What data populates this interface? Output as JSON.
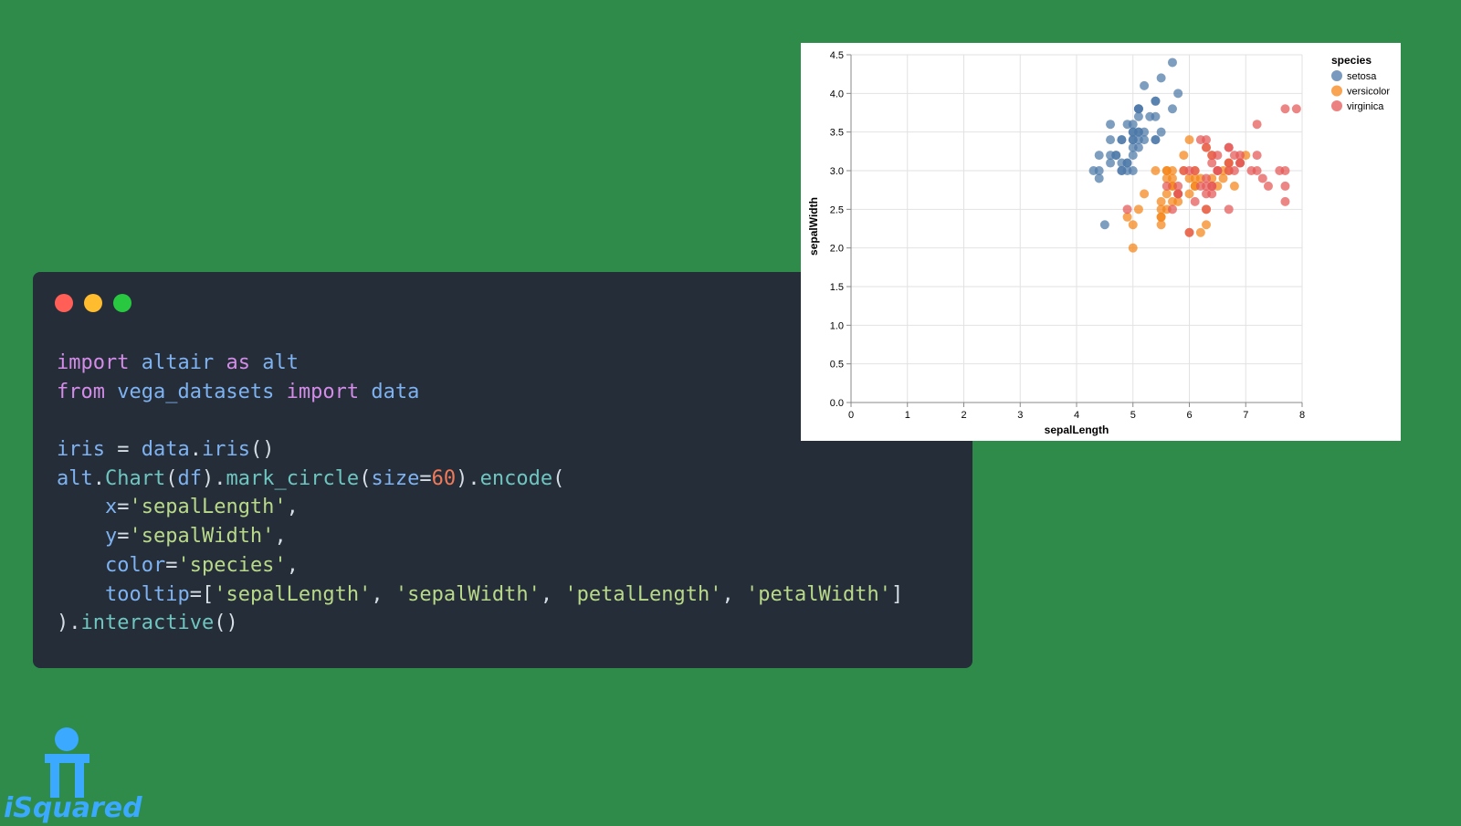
{
  "window_controls": [
    {
      "name": "close",
      "color": "#ff5f57"
    },
    {
      "name": "minimize",
      "color": "#febc2e"
    },
    {
      "name": "maximize",
      "color": "#28c840"
    }
  ],
  "code_lines": [
    [
      {
        "t": "import",
        "c": "kw"
      },
      {
        "t": " altair ",
        "c": "id"
      },
      {
        "t": "as",
        "c": "kw"
      },
      {
        "t": " alt",
        "c": "id"
      }
    ],
    [
      {
        "t": "from",
        "c": "kw"
      },
      {
        "t": " vega_datasets ",
        "c": "id"
      },
      {
        "t": "import",
        "c": "kw"
      },
      {
        "t": " data",
        "c": "id"
      }
    ],
    [],
    [
      {
        "t": "iris",
        "c": "id"
      },
      {
        "t": " = ",
        "c": "p"
      },
      {
        "t": "data",
        "c": "id"
      },
      {
        "t": ".",
        "c": "p"
      },
      {
        "t": "iris",
        "c": "id"
      },
      {
        "t": "()",
        "c": "p"
      }
    ],
    [
      {
        "t": "alt",
        "c": "id"
      },
      {
        "t": ".",
        "c": "p"
      },
      {
        "t": "Chart",
        "c": "fn"
      },
      {
        "t": "(",
        "c": "p"
      },
      {
        "t": "df",
        "c": "id"
      },
      {
        "t": ").",
        "c": "p"
      },
      {
        "t": "mark_circle",
        "c": "fn"
      },
      {
        "t": "(",
        "c": "p"
      },
      {
        "t": "size",
        "c": "id"
      },
      {
        "t": "=",
        "c": "p"
      },
      {
        "t": "60",
        "c": "num"
      },
      {
        "t": ").",
        "c": "p"
      },
      {
        "t": "encode",
        "c": "fn"
      },
      {
        "t": "(",
        "c": "p"
      }
    ],
    [
      {
        "t": "    x",
        "c": "id"
      },
      {
        "t": "=",
        "c": "p"
      },
      {
        "t": "'sepalLength'",
        "c": "str"
      },
      {
        "t": ",",
        "c": "p"
      }
    ],
    [
      {
        "t": "    y",
        "c": "id"
      },
      {
        "t": "=",
        "c": "p"
      },
      {
        "t": "'sepalWidth'",
        "c": "str"
      },
      {
        "t": ",",
        "c": "p"
      }
    ],
    [
      {
        "t": "    color",
        "c": "id"
      },
      {
        "t": "=",
        "c": "p"
      },
      {
        "t": "'species'",
        "c": "str"
      },
      {
        "t": ",",
        "c": "p"
      }
    ],
    [
      {
        "t": "    tooltip",
        "c": "id"
      },
      {
        "t": "=[",
        "c": "p"
      },
      {
        "t": "'sepalLength'",
        "c": "str"
      },
      {
        "t": ", ",
        "c": "p"
      },
      {
        "t": "'sepalWidth'",
        "c": "str"
      },
      {
        "t": ", ",
        "c": "p"
      },
      {
        "t": "'petalLength'",
        "c": "str"
      },
      {
        "t": ", ",
        "c": "p"
      },
      {
        "t": "'petalWidth'",
        "c": "str"
      },
      {
        "t": "]",
        "c": "p"
      }
    ],
    [
      {
        "t": ").",
        "c": "p"
      },
      {
        "t": "interactive",
        "c": "fn"
      },
      {
        "t": "()",
        "c": "p"
      }
    ]
  ],
  "chart_data": {
    "type": "scatter",
    "xlabel": "sepalLength",
    "ylabel": "sepalWidth",
    "xlim": [
      0,
      8
    ],
    "ylim": [
      0,
      4.5
    ],
    "xticks": [
      "0",
      "1",
      "2",
      "3",
      "4",
      "5",
      "6",
      "7",
      "8"
    ],
    "yticks": [
      "0.0",
      "0.5",
      "1.0",
      "1.5",
      "2.0",
      "2.5",
      "3.0",
      "3.5",
      "4.0",
      "4.5"
    ],
    "grid": true,
    "legend": {
      "title": "species",
      "position": "top-right"
    },
    "series": [
      {
        "name": "setosa",
        "color": "#4c78a8",
        "points": [
          [
            5.1,
            3.5
          ],
          [
            4.9,
            3.0
          ],
          [
            4.7,
            3.2
          ],
          [
            4.6,
            3.1
          ],
          [
            5.0,
            3.6
          ],
          [
            5.4,
            3.9
          ],
          [
            4.6,
            3.4
          ],
          [
            5.0,
            3.4
          ],
          [
            4.4,
            2.9
          ],
          [
            4.9,
            3.1
          ],
          [
            5.4,
            3.7
          ],
          [
            4.8,
            3.4
          ],
          [
            4.8,
            3.0
          ],
          [
            4.3,
            3.0
          ],
          [
            5.8,
            4.0
          ],
          [
            5.7,
            4.4
          ],
          [
            5.4,
            3.9
          ],
          [
            5.1,
            3.5
          ],
          [
            5.7,
            3.8
          ],
          [
            5.1,
            3.8
          ],
          [
            5.4,
            3.4
          ],
          [
            5.1,
            3.7
          ],
          [
            4.6,
            3.6
          ],
          [
            5.1,
            3.3
          ],
          [
            4.8,
            3.4
          ],
          [
            5.0,
            3.0
          ],
          [
            5.0,
            3.4
          ],
          [
            5.2,
            3.5
          ],
          [
            5.2,
            3.4
          ],
          [
            4.7,
            3.2
          ],
          [
            4.8,
            3.1
          ],
          [
            5.4,
            3.4
          ],
          [
            5.2,
            4.1
          ],
          [
            5.5,
            4.2
          ],
          [
            4.9,
            3.1
          ],
          [
            5.0,
            3.2
          ],
          [
            5.5,
            3.5
          ],
          [
            4.9,
            3.6
          ],
          [
            4.4,
            3.0
          ],
          [
            5.1,
            3.4
          ],
          [
            5.0,
            3.5
          ],
          [
            4.5,
            2.3
          ],
          [
            4.4,
            3.2
          ],
          [
            5.0,
            3.5
          ],
          [
            5.1,
            3.8
          ],
          [
            4.8,
            3.0
          ],
          [
            5.1,
            3.8
          ],
          [
            4.6,
            3.2
          ],
          [
            5.3,
            3.7
          ],
          [
            5.0,
            3.3
          ]
        ]
      },
      {
        "name": "versicolor",
        "color": "#f58518",
        "points": [
          [
            7.0,
            3.2
          ],
          [
            6.4,
            3.2
          ],
          [
            6.9,
            3.1
          ],
          [
            5.5,
            2.3
          ],
          [
            6.5,
            2.8
          ],
          [
            5.7,
            2.8
          ],
          [
            6.3,
            3.3
          ],
          [
            4.9,
            2.4
          ],
          [
            6.6,
            2.9
          ],
          [
            5.2,
            2.7
          ],
          [
            5.0,
            2.0
          ],
          [
            5.9,
            3.0
          ],
          [
            6.0,
            2.2
          ],
          [
            6.1,
            2.9
          ],
          [
            5.6,
            2.9
          ],
          [
            6.7,
            3.1
          ],
          [
            5.6,
            3.0
          ],
          [
            5.8,
            2.7
          ],
          [
            6.2,
            2.2
          ],
          [
            5.6,
            2.5
          ],
          [
            5.9,
            3.2
          ],
          [
            6.1,
            2.8
          ],
          [
            6.3,
            2.5
          ],
          [
            6.1,
            2.8
          ],
          [
            6.4,
            2.9
          ],
          [
            6.6,
            3.0
          ],
          [
            6.8,
            2.8
          ],
          [
            6.7,
            3.0
          ],
          [
            6.0,
            2.9
          ],
          [
            5.7,
            2.6
          ],
          [
            5.5,
            2.4
          ],
          [
            5.5,
            2.4
          ],
          [
            5.8,
            2.7
          ],
          [
            6.0,
            2.7
          ],
          [
            5.4,
            3.0
          ],
          [
            6.0,
            3.4
          ],
          [
            6.7,
            3.1
          ],
          [
            6.3,
            2.3
          ],
          [
            5.6,
            3.0
          ],
          [
            5.5,
            2.5
          ],
          [
            5.5,
            2.6
          ],
          [
            6.1,
            3.0
          ],
          [
            5.8,
            2.6
          ],
          [
            5.0,
            2.3
          ],
          [
            5.6,
            2.7
          ],
          [
            5.7,
            3.0
          ],
          [
            5.7,
            2.9
          ],
          [
            6.2,
            2.9
          ],
          [
            5.1,
            2.5
          ],
          [
            5.7,
            2.8
          ]
        ]
      },
      {
        "name": "virginica",
        "color": "#e45756",
        "points": [
          [
            6.3,
            3.3
          ],
          [
            5.8,
            2.7
          ],
          [
            7.1,
            3.0
          ],
          [
            6.3,
            2.9
          ],
          [
            6.5,
            3.0
          ],
          [
            7.6,
            3.0
          ],
          [
            4.9,
            2.5
          ],
          [
            7.3,
            2.9
          ],
          [
            6.7,
            2.5
          ],
          [
            7.2,
            3.6
          ],
          [
            6.5,
            3.2
          ],
          [
            6.4,
            2.7
          ],
          [
            6.8,
            3.0
          ],
          [
            5.7,
            2.5
          ],
          [
            5.8,
            2.8
          ],
          [
            6.4,
            3.2
          ],
          [
            6.5,
            3.0
          ],
          [
            7.7,
            3.8
          ],
          [
            7.7,
            2.6
          ],
          [
            6.0,
            2.2
          ],
          [
            6.9,
            3.2
          ],
          [
            5.6,
            2.8
          ],
          [
            7.7,
            2.8
          ],
          [
            6.3,
            2.7
          ],
          [
            6.7,
            3.3
          ],
          [
            7.2,
            3.2
          ],
          [
            6.2,
            2.8
          ],
          [
            6.1,
            3.0
          ],
          [
            6.4,
            2.8
          ],
          [
            7.2,
            3.0
          ],
          [
            7.4,
            2.8
          ],
          [
            7.9,
            3.8
          ],
          [
            6.4,
            2.8
          ],
          [
            6.3,
            2.8
          ],
          [
            6.1,
            2.6
          ],
          [
            7.7,
            3.0
          ],
          [
            6.3,
            3.4
          ],
          [
            6.4,
            3.1
          ],
          [
            6.0,
            3.0
          ],
          [
            6.9,
            3.1
          ],
          [
            6.7,
            3.1
          ],
          [
            6.9,
            3.1
          ],
          [
            5.8,
            2.7
          ],
          [
            6.8,
            3.2
          ],
          [
            6.7,
            3.3
          ],
          [
            6.7,
            3.0
          ],
          [
            6.3,
            2.5
          ],
          [
            6.5,
            3.0
          ],
          [
            6.2,
            3.4
          ],
          [
            5.9,
            3.0
          ]
        ]
      }
    ]
  },
  "logo": {
    "text": "iSquared",
    "color": "#3aa9ff"
  }
}
